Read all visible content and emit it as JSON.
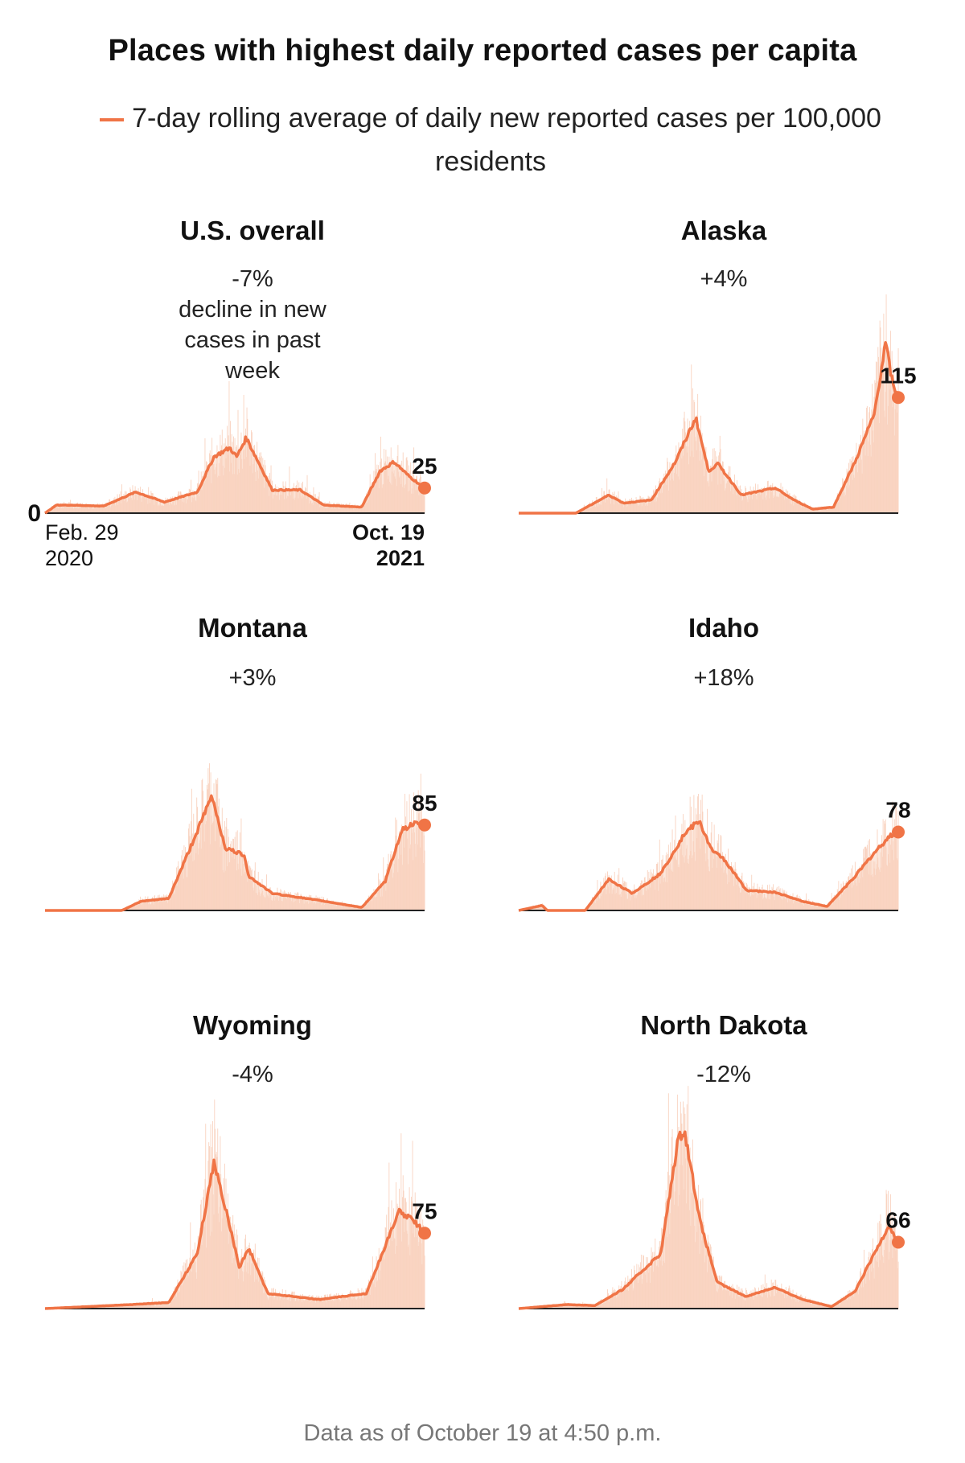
{
  "title": "Places with highest daily reported cases per capita",
  "legend": {
    "label": "7-day rolling average of daily new reported cases per 100,000 residents",
    "color": "#f07446"
  },
  "footer": "Data as of October 19 at 4:50 p.m.",
  "colors": {
    "line": "#f07446",
    "bars": "#f9d3c0",
    "axis": "#222222"
  },
  "chart_data": [
    {
      "type": "area",
      "name": "U.S. overall",
      "change": "-7%",
      "change_desc": "decline in new cases in past week",
      "latest_label": "25",
      "ylim": [
        0,
        180
      ],
      "x_start_label": [
        "Feb. 29",
        "2020"
      ],
      "x_end_label": [
        "Oct. 19",
        "2021"
      ],
      "y_zero_label": "0",
      "points": [
        [
          0,
          0
        ],
        [
          18,
          8
        ],
        [
          40,
          8
        ],
        [
          92,
          7
        ],
        [
          143,
          21
        ],
        [
          188,
          11
        ],
        [
          240,
          21
        ],
        [
          266,
          56
        ],
        [
          291,
          65
        ],
        [
          302,
          56
        ],
        [
          317,
          75
        ],
        [
          358,
          23
        ],
        [
          402,
          23
        ],
        [
          439,
          8
        ],
        [
          499,
          6
        ],
        [
          528,
          42
        ],
        [
          550,
          51
        ],
        [
          573,
          37
        ],
        [
          598,
          25
        ]
      ]
    },
    {
      "type": "area",
      "name": "Alaska",
      "change": "+4%",
      "latest_label": "115",
      "ylim": [
        0,
        180
      ],
      "points": [
        [
          0,
          0
        ],
        [
          90,
          0
        ],
        [
          142,
          18
        ],
        [
          165,
          10
        ],
        [
          209,
          13
        ],
        [
          247,
          51
        ],
        [
          279,
          95
        ],
        [
          299,
          42
        ],
        [
          314,
          49
        ],
        [
          351,
          18
        ],
        [
          404,
          25
        ],
        [
          434,
          13
        ],
        [
          463,
          4
        ],
        [
          496,
          6
        ],
        [
          530,
          51
        ],
        [
          560,
          98
        ],
        [
          578,
          169
        ],
        [
          590,
          126
        ],
        [
          598,
          115
        ]
      ]
    },
    {
      "type": "area",
      "name": "Montana",
      "change": "+3%",
      "latest_label": "85",
      "ylim": [
        0,
        180
      ],
      "points": [
        [
          0,
          0
        ],
        [
          121,
          0
        ],
        [
          151,
          9
        ],
        [
          195,
          12
        ],
        [
          232,
          67
        ],
        [
          263,
          114
        ],
        [
          284,
          62
        ],
        [
          314,
          55
        ],
        [
          321,
          34
        ],
        [
          358,
          17
        ],
        [
          432,
          10
        ],
        [
          499,
          3
        ],
        [
          536,
          29
        ],
        [
          562,
          80
        ],
        [
          580,
          86
        ],
        [
          598,
          85
        ]
      ]
    },
    {
      "type": "area",
      "name": "Idaho",
      "change": "+18%",
      "latest_label": "78",
      "ylim": [
        0,
        180
      ],
      "points": [
        [
          0,
          0
        ],
        [
          37,
          5
        ],
        [
          45,
          0
        ],
        [
          105,
          0
        ],
        [
          142,
          31
        ],
        [
          179,
          17
        ],
        [
          224,
          37
        ],
        [
          262,
          77
        ],
        [
          284,
          89
        ],
        [
          306,
          58
        ],
        [
          321,
          53
        ],
        [
          359,
          20
        ],
        [
          404,
          18
        ],
        [
          448,
          9
        ],
        [
          486,
          4
        ],
        [
          530,
          34
        ],
        [
          560,
          57
        ],
        [
          583,
          73
        ],
        [
          598,
          78
        ]
      ]
    },
    {
      "type": "area",
      "name": "Wyoming",
      "change": "-4%",
      "latest_label": "75",
      "ylim": [
        0,
        180
      ],
      "points": [
        [
          0,
          0
        ],
        [
          136,
          4
        ],
        [
          195,
          6
        ],
        [
          240,
          55
        ],
        [
          266,
          146
        ],
        [
          291,
          83
        ],
        [
          306,
          41
        ],
        [
          321,
          60
        ],
        [
          351,
          15
        ],
        [
          432,
          9
        ],
        [
          506,
          15
        ],
        [
          543,
          73
        ],
        [
          558,
          97
        ],
        [
          580,
          88
        ],
        [
          598,
          75
        ]
      ]
    },
    {
      "type": "area",
      "name": "North Dakota",
      "change": "-12%",
      "latest_label": "66",
      "ylim": [
        0,
        180
      ],
      "points": [
        [
          0,
          0
        ],
        [
          75,
          4
        ],
        [
          120,
          3
        ],
        [
          164,
          19
        ],
        [
          224,
          55
        ],
        [
          251,
          168
        ],
        [
          261,
          178
        ],
        [
          287,
          83
        ],
        [
          313,
          26
        ],
        [
          358,
          12
        ],
        [
          403,
          21
        ],
        [
          448,
          9
        ],
        [
          493,
          2
        ],
        [
          530,
          17
        ],
        [
          568,
          64
        ],
        [
          583,
          83
        ],
        [
          598,
          66
        ]
      ]
    }
  ]
}
